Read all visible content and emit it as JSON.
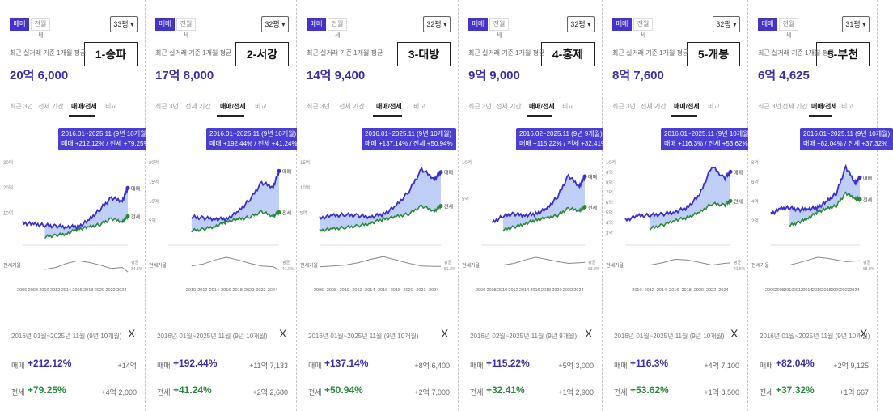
{
  "tabs": {
    "sale": "매매",
    "rent": "전월세"
  },
  "avg_label": "최근 실거래 기준 1개월 평균",
  "range_tabs": [
    "최근 3년",
    "전체 기간",
    "매매/전세",
    "비교"
  ],
  "close_icon": "X",
  "row_labels": {
    "sale": "매매",
    "rent": "전세"
  },
  "chart_labels": {
    "sale": "매매",
    "rent": "전세",
    "ratio": "전세가율",
    "ratio_avg": "평균"
  },
  "colors": {
    "sale": "#3a2fd0",
    "rent": "#2a8a3a",
    "ratio": "#888888",
    "accent": "#4433c8"
  },
  "panels": [
    {
      "region": "1-송파",
      "size": "33평",
      "avg_price": "20억 6,000",
      "tooltip_period": "2016.01~2025.11 (9년 10개월)",
      "tooltip_change": "매매 +212.12% / 전세 +79.25%",
      "summary_period": "2016년 01월~2025년 11월 (9년 10개월)",
      "sale_pct": "+212.12%",
      "sale_amt": "+14억",
      "rent_pct": "+79.25%",
      "rent_amt": "+4억 2,000",
      "ratio_value": "34.5%"
    },
    {
      "region": "2-서강",
      "size": "32평",
      "avg_price": "17억 8,000",
      "tooltip_period": "2016.01~2025.11 (9년 10개월)",
      "tooltip_change": "매매 +192.44% / 전세 +41.24%",
      "summary_period": "2016년 01월~2025년 11월 (9년 10개월)",
      "sale_pct": "+192.44%",
      "sale_amt": "+11억 7,133",
      "rent_pct": "+41.24%",
      "rent_amt": "+2억 2,680",
      "ratio_value": "41.0%"
    },
    {
      "region": "3-대방",
      "size": "32평",
      "avg_price": "14억 9,400",
      "tooltip_period": "2016.01~2025.11 (9년 10개월)",
      "tooltip_change": "매매 +137.14% / 전세 +50.94%",
      "summary_period": "2016년 01월~2025년 11월 (9년 10개월)",
      "sale_pct": "+137.14%",
      "sale_amt": "+8억 6,400",
      "rent_pct": "+50.94%",
      "rent_amt": "+2억 7,000",
      "ratio_value": "51.2%"
    },
    {
      "region": "4-홍제",
      "size": "32평",
      "avg_price": "9억 9,000",
      "tooltip_period": "2016.02~2025.11 (9년 9개월)",
      "tooltip_change": "매매 +115.22% / 전세 +32.41%",
      "summary_period": "2016년 02월~2025년 11월 (9년 9개월)",
      "sale_pct": "+115.22%",
      "sale_amt": "+5억 3,000",
      "rent_pct": "+32.41%",
      "rent_amt": "+1억 2,900",
      "ratio_value": "63.0%"
    },
    {
      "region": "5-개봉",
      "size": "32평",
      "avg_price": "8억 7,600",
      "tooltip_period": "2016.01~2025.11 (9년 10개월)",
      "tooltip_change": "매매 +116.3% / 전세 +53.62%",
      "summary_period": "2016년 01월~2025년 11월 (9년 10개월)",
      "sale_pct": "+116.3%",
      "sale_amt": "+4억 7,100",
      "rent_pct": "+53.62%",
      "rent_amt": "+1억 8,500",
      "ratio_value": "61.5%"
    },
    {
      "region": "5-부천",
      "size": "31평",
      "avg_price": "6억 4,625",
      "tooltip_period": "2016.01~2025.11 (9년 10개월)",
      "tooltip_change": "매매 +82.04% / 전세 +37.32%",
      "summary_period": "2016년 01월~2025년 11월 (9년 10개월)",
      "sale_pct": "+82.04%",
      "sale_amt": "+2억 9,125",
      "rent_pct": "+37.32%",
      "rent_amt": "+1억 667",
      "ratio_value": "68.0%"
    }
  ],
  "chart_data": [
    {
      "type": "area",
      "title": "1-송파 매매/전세",
      "ylim": [
        0,
        30
      ],
      "yticks": [
        "30억",
        "20억",
        "10억"
      ],
      "x": [
        2006,
        2008,
        2010,
        2012,
        2014,
        2016,
        2018,
        2020,
        2022,
        2024,
        2025
      ],
      "series": [
        {
          "name": "매매",
          "values": [
            8,
            7.5,
            7.2,
            6.8,
            6.6,
            6.6,
            9,
            13,
            17,
            16,
            20.6
          ]
        },
        {
          "name": "전세",
          "values": [
            null,
            null,
            3,
            3.5,
            4.2,
            5.8,
            6.5,
            7.5,
            9.5,
            8.5,
            10.4
          ]
        }
      ],
      "ratio": {
        "name": "전세가율",
        "values": [
          null,
          null,
          42,
          48,
          60,
          68,
          63,
          55,
          45,
          48,
          34.5
        ]
      },
      "xticks": [
        "2006",
        "2008",
        "2010",
        "2012",
        "2014",
        "2016",
        "2018",
        "2020",
        "2022",
        "2024"
      ]
    },
    {
      "type": "area",
      "title": "2-서강 매매/전세",
      "ylim": [
        0,
        20
      ],
      "yticks": [
        "20억",
        "15억",
        "10억",
        "5억"
      ],
      "x": [
        2006,
        2008,
        2010,
        2012,
        2014,
        2016,
        2018,
        2020,
        2022,
        2024,
        2025
      ],
      "series": [
        {
          "name": "매매",
          "values": [
            null,
            null,
            6.8,
            6.5,
            6.3,
            6.2,
            8,
            11,
            15,
            14,
            17.8
          ]
        },
        {
          "name": "전세",
          "values": [
            null,
            null,
            3.5,
            3.8,
            4.5,
            5.6,
            6.2,
            6.8,
            8,
            7,
            7.9
          ]
        }
      ],
      "ratio": {
        "name": "전세가율",
        "values": [
          null,
          null,
          52,
          58,
          70,
          78,
          70,
          60,
          52,
          50,
          41
        ]
      },
      "xticks": [
        "2010",
        "2012",
        "2014",
        "2016",
        "2018",
        "2020",
        "2022",
        "2024"
      ]
    },
    {
      "type": "area",
      "title": "3-대방 매매/전세",
      "ylim": [
        0,
        17
      ],
      "yticks": [
        "15억",
        "10억",
        "5억"
      ],
      "x": [
        2006,
        2008,
        2010,
        2012,
        2014,
        2016,
        2018,
        2020,
        2022,
        2024,
        2025
      ],
      "series": [
        {
          "name": "매매",
          "values": [
            5.5,
            6,
            6.2,
            6,
            5.8,
            6.3,
            8,
            11,
            15.5,
            13.5,
            14.9
          ]
        },
        {
          "name": "전세",
          "values": [
            3,
            3.3,
            3.6,
            3.9,
            4.5,
            5.3,
            5.8,
            6.4,
            8,
            7,
            8
          ]
        }
      ],
      "ratio": {
        "name": "전세가율",
        "values": [
          50,
          52,
          55,
          62,
          72,
          80,
          70,
          60,
          52,
          51,
          51.2
        ]
      },
      "xticks": [
        "2006",
        "2008",
        "2010",
        "2012",
        "2014",
        "2016",
        "2018",
        "2020",
        "2022",
        "2024"
      ]
    },
    {
      "type": "area",
      "title": "4-홍제 매매/전세",
      "ylim": [
        0,
        12
      ],
      "yticks": [
        "10억",
        "5억"
      ],
      "x": [
        2006,
        2008,
        2010,
        2012,
        2014,
        2016,
        2018,
        2020,
        2022,
        2024,
        2025
      ],
      "series": [
        {
          "name": "매매",
          "values": [
            null,
            3.2,
            4.2,
            4.5,
            4.3,
            4.5,
            5.2,
            7,
            10,
            8.5,
            9.9
          ]
        },
        {
          "name": "전세",
          "values": [
            null,
            null,
            2.2,
            2.6,
            3.1,
            3.6,
            3.9,
            4.3,
            5.3,
            5,
            5.5
          ]
        }
      ],
      "ratio": {
        "name": "전세가율",
        "values": [
          null,
          null,
          55,
          60,
          70,
          78,
          72,
          65,
          60,
          62,
          63
        ]
      },
      "xticks": [
        "2006",
        "2008",
        "2010",
        "2012",
        "2014",
        "2016",
        "2018",
        "2020",
        "2022",
        "2024"
      ]
    },
    {
      "type": "area",
      "title": "5-개봉 매매/전세",
      "ylim": [
        0,
        10
      ],
      "yticks": [
        "10억",
        "9억",
        "8억",
        "7억",
        "6억",
        "5억",
        "4억",
        "3억"
      ],
      "x": [
        2008,
        2010,
        2012,
        2014,
        2016,
        2018,
        2020,
        2022,
        2024,
        2025
      ],
      "series": [
        {
          "name": "매매",
          "values": [
            3,
            3.5,
            3.6,
            3.7,
            4,
            4.5,
            6,
            9.5,
            8,
            8.8
          ]
        },
        {
          "name": "전세",
          "values": [
            null,
            null,
            2,
            2.4,
            3,
            3.3,
            3.9,
            5,
            4.8,
            5.3
          ]
        }
      ],
      "ratio": {
        "name": "전세가율",
        "values": [
          null,
          null,
          55,
          62,
          72,
          70,
          63,
          55,
          60,
          61.5
        ]
      },
      "xticks": [
        "2010",
        "2012",
        "2014",
        "2016",
        "2018",
        "2020",
        "2022",
        "2024"
      ]
    },
    {
      "type": "area",
      "title": "5-부천 매매/전세",
      "ylim": [
        0,
        8
      ],
      "yticks": [
        "8억",
        "6억",
        "4억",
        "2억"
      ],
      "x": [
        2006,
        2008,
        2010,
        2012,
        2014,
        2016,
        2018,
        2020,
        2022,
        2024,
        2025
      ],
      "series": [
        {
          "name": "매매",
          "values": [
            3,
            3.5,
            3.6,
            3.4,
            3.5,
            3.6,
            4.2,
            5,
            7.5,
            6,
            6.5
          ]
        },
        {
          "name": "전세",
          "values": [
            null,
            null,
            1.9,
            2.2,
            2.6,
            3.2,
            3.5,
            3.8,
            5,
            4.5,
            4.4
          ]
        }
      ],
      "ratio": {
        "name": "전세가율",
        "values": [
          null,
          null,
          55,
          62,
          70,
          78,
          75,
          70,
          65,
          67,
          68
        ]
      },
      "xticks": [
        "2006",
        "2008",
        "2010",
        "2012",
        "2014",
        "2016",
        "2018",
        "2020",
        "2022",
        "2024"
      ]
    }
  ]
}
